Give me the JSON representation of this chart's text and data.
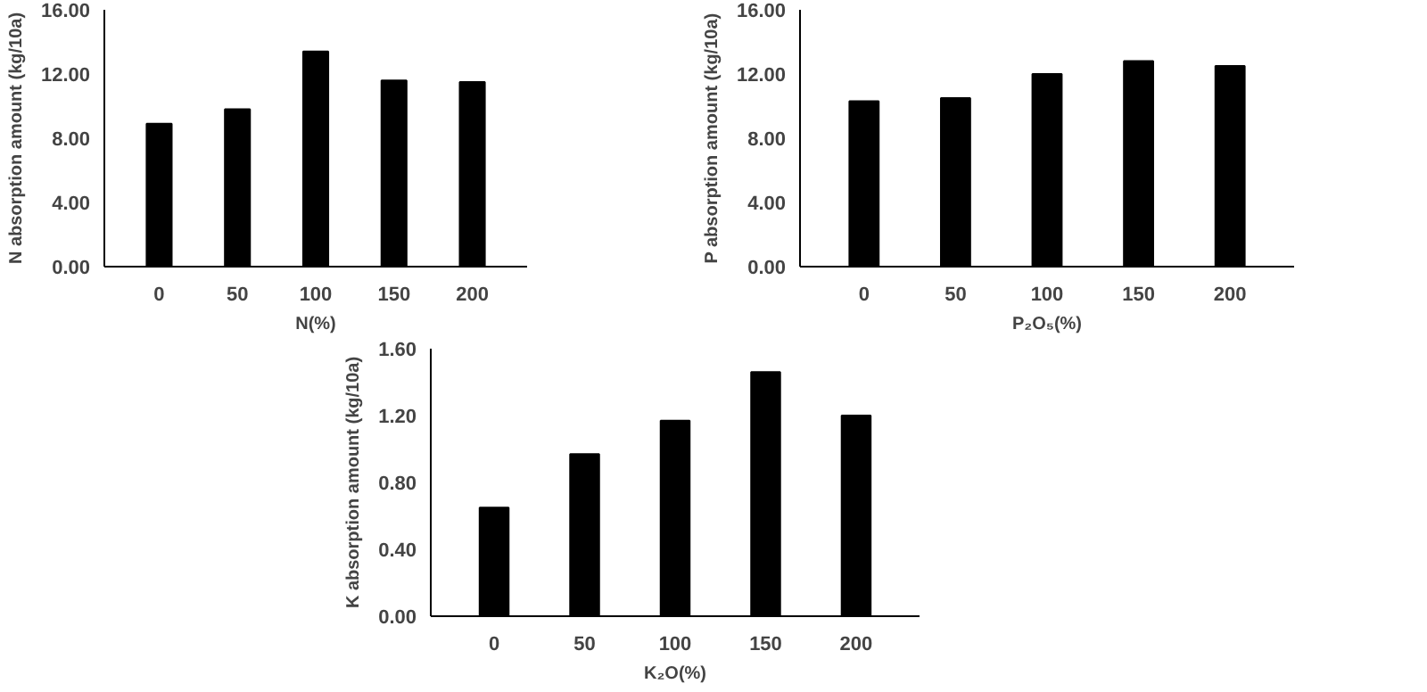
{
  "chart_data": [
    {
      "type": "bar",
      "categories": [
        "0",
        "50",
        "100",
        "150",
        "200"
      ],
      "values": [
        8.9,
        9.8,
        13.4,
        11.6,
        11.5
      ],
      "color": "#000000",
      "xlabel": "N(%)",
      "ylabel": "N absorption amount (kg/10a)",
      "ylim": [
        0,
        16
      ],
      "yticks": [
        {
          "value": 0,
          "label": "0.00"
        },
        {
          "value": 4,
          "label": "4.00"
        },
        {
          "value": 8,
          "label": "8.00"
        },
        {
          "value": 12,
          "label": "12.00"
        },
        {
          "value": 16,
          "label": "16.00"
        }
      ],
      "grid": false
    },
    {
      "type": "bar",
      "categories": [
        "0",
        "50",
        "100",
        "150",
        "200"
      ],
      "values": [
        10.3,
        10.5,
        12.0,
        12.8,
        12.5
      ],
      "color": "#000000",
      "xlabel": "P₂O₅(%)",
      "ylabel": "P absorption amount (kg/10a)",
      "ylim": [
        0,
        16
      ],
      "yticks": [
        {
          "value": 0,
          "label": "0.00"
        },
        {
          "value": 4,
          "label": "4.00"
        },
        {
          "value": 8,
          "label": "8.00"
        },
        {
          "value": 12,
          "label": "12.00"
        },
        {
          "value": 16,
          "label": "16.00"
        }
      ],
      "grid": false
    },
    {
      "type": "bar",
      "categories": [
        "0",
        "50",
        "100",
        "150",
        "200"
      ],
      "values": [
        0.65,
        0.97,
        1.17,
        1.46,
        1.2
      ],
      "color": "#000000",
      "xlabel": "K₂O(%)",
      "ylabel": "K absorption amount (kg/10a)",
      "ylim": [
        0,
        1.6
      ],
      "yticks": [
        {
          "value": 0,
          "label": "0.00"
        },
        {
          "value": 0.4,
          "label": "0.40"
        },
        {
          "value": 0.8,
          "label": "0.80"
        },
        {
          "value": 1.2,
          "label": "1.20"
        },
        {
          "value": 1.6,
          "label": "1.60"
        }
      ],
      "grid": false
    }
  ]
}
